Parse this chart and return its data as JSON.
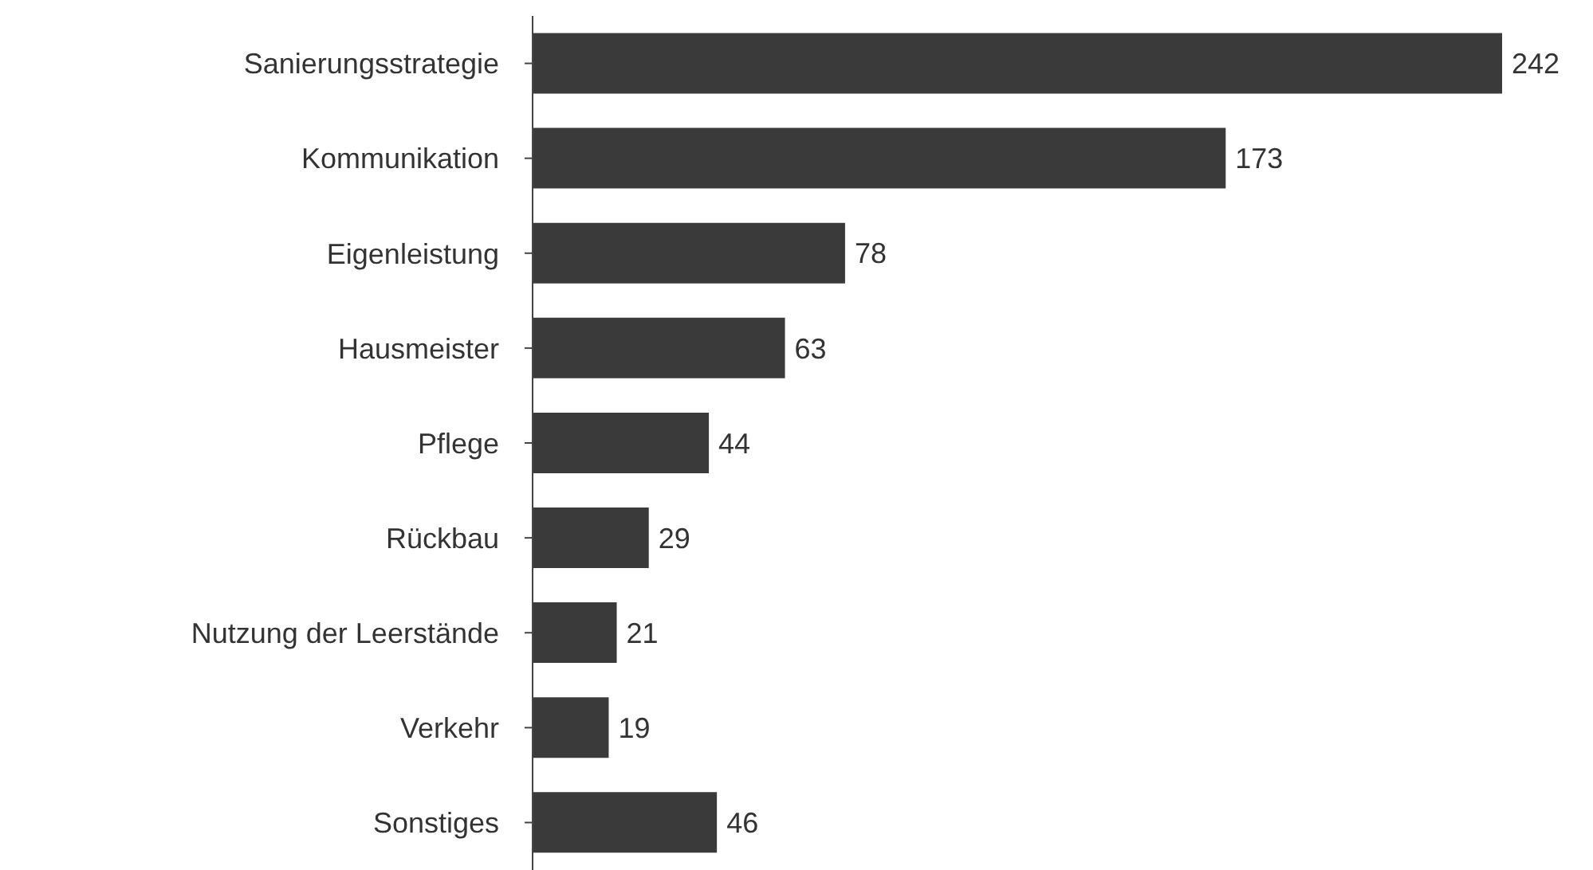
{
  "chart_data": {
    "type": "bar",
    "orientation": "horizontal",
    "categories": [
      "Sanierungsstrategie",
      "Kommunikation",
      "Eigenleistung",
      "Hausmeister",
      "Pflege",
      "Rückbau",
      "Nutzung der Leerstände",
      "Verkehr",
      "Sonstiges"
    ],
    "values": [
      242,
      173,
      78,
      63,
      44,
      29,
      21,
      19,
      46
    ],
    "color": "#3a3a3a",
    "data_labels": true,
    "grid": false,
    "legend": false,
    "tick_labels": "y"
  }
}
